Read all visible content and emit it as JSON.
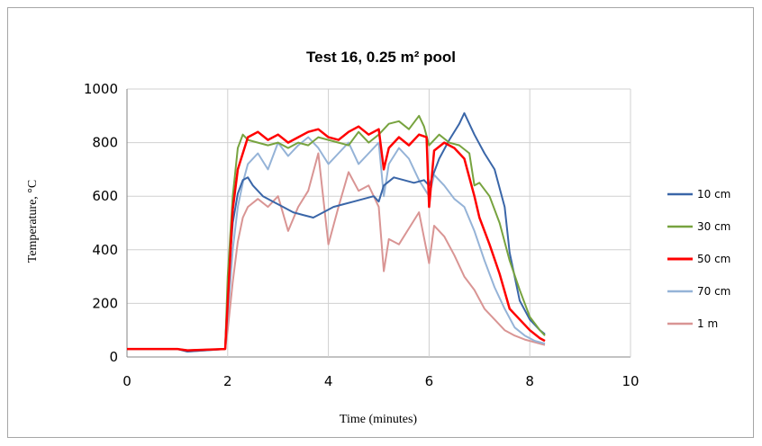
{
  "chart_data": {
    "type": "line",
    "title": "Test 16, 0.25 m² pool",
    "xlabel": "Time (minutes)",
    "ylabel": "Temperature, °C",
    "xlim": [
      0,
      10
    ],
    "ylim": [
      0,
      1000
    ],
    "xticks": [
      "0",
      "2",
      "4",
      "6",
      "8",
      "10"
    ],
    "yticks": [
      "0",
      "200",
      "400",
      "600",
      "800",
      "1000"
    ],
    "grid": true,
    "legend_position": "right",
    "series": [
      {
        "name": "10 cm",
        "color": "#3a66a8",
        "x": [
          0,
          1,
          1.2,
          1.95,
          2.0,
          2.1,
          2.2,
          2.3,
          2.4,
          2.5,
          2.7,
          2.9,
          3.1,
          3.3,
          3.5,
          3.7,
          3.9,
          4.1,
          4.3,
          4.5,
          4.7,
          4.9,
          5.0,
          5.1,
          5.3,
          5.5,
          5.7,
          5.9,
          6.0,
          6.2,
          6.4,
          6.6,
          6.7,
          6.9,
          7.1,
          7.3,
          7.5,
          7.6,
          7.8,
          8.0,
          8.2,
          8.3
        ],
        "y": [
          30,
          30,
          20,
          30,
          250,
          500,
          610,
          660,
          670,
          640,
          600,
          580,
          560,
          540,
          530,
          520,
          540,
          560,
          570,
          580,
          590,
          600,
          580,
          640,
          670,
          660,
          650,
          660,
          640,
          740,
          810,
          870,
          910,
          830,
          760,
          700,
          560,
          390,
          210,
          140,
          100,
          85
        ]
      },
      {
        "name": "30 cm",
        "color": "#77a33f",
        "x": [
          0,
          1,
          1.2,
          1.95,
          2.0,
          2.1,
          2.2,
          2.3,
          2.4,
          2.6,
          2.8,
          3.0,
          3.2,
          3.4,
          3.6,
          3.8,
          4.0,
          4.2,
          4.4,
          4.6,
          4.8,
          5.0,
          5.2,
          5.4,
          5.6,
          5.8,
          5.9,
          6.0,
          6.2,
          6.4,
          6.6,
          6.8,
          6.9,
          7.0,
          7.2,
          7.4,
          7.6,
          7.8,
          8.0,
          8.2,
          8.3
        ],
        "y": [
          30,
          30,
          25,
          30,
          300,
          600,
          780,
          830,
          810,
          800,
          790,
          800,
          780,
          800,
          790,
          820,
          810,
          800,
          790,
          840,
          800,
          830,
          870,
          880,
          850,
          900,
          860,
          790,
          830,
          800,
          790,
          760,
          640,
          650,
          600,
          500,
          360,
          250,
          150,
          100,
          80
        ]
      },
      {
        "name": "50 cm",
        "color": "#ff0000",
        "x": [
          0,
          1,
          1.2,
          1.95,
          2.0,
          2.1,
          2.2,
          2.3,
          2.4,
          2.6,
          2.8,
          3.0,
          3.2,
          3.4,
          3.6,
          3.8,
          4.0,
          4.2,
          4.4,
          4.6,
          4.8,
          5.0,
          5.1,
          5.2,
          5.4,
          5.6,
          5.8,
          5.95,
          6.0,
          6.1,
          6.3,
          6.5,
          6.7,
          6.9,
          7.0,
          7.2,
          7.4,
          7.6,
          7.8,
          8.0,
          8.2,
          8.3
        ],
        "y": [
          30,
          30,
          25,
          30,
          200,
          550,
          700,
          760,
          820,
          840,
          810,
          830,
          800,
          820,
          840,
          850,
          820,
          810,
          840,
          860,
          830,
          850,
          700,
          780,
          820,
          790,
          830,
          820,
          560,
          770,
          800,
          780,
          740,
          600,
          520,
          420,
          310,
          180,
          140,
          100,
          70,
          60
        ]
      },
      {
        "name": "70 cm",
        "color": "#95b3d7",
        "x": [
          0,
          1,
          1.2,
          1.95,
          2.0,
          2.1,
          2.2,
          2.3,
          2.4,
          2.6,
          2.8,
          3.0,
          3.2,
          3.4,
          3.6,
          3.8,
          4.0,
          4.2,
          4.4,
          4.6,
          4.8,
          5.0,
          5.1,
          5.2,
          5.4,
          5.6,
          5.8,
          6.0,
          6.1,
          6.3,
          6.5,
          6.7,
          6.9,
          7.1,
          7.3,
          7.5,
          7.7,
          7.9,
          8.1,
          8.3
        ],
        "y": [
          30,
          30,
          25,
          30,
          150,
          400,
          560,
          650,
          720,
          760,
          700,
          800,
          750,
          790,
          820,
          780,
          720,
          760,
          800,
          720,
          760,
          800,
          600,
          720,
          780,
          740,
          660,
          600,
          680,
          640,
          590,
          560,
          470,
          360,
          260,
          180,
          110,
          80,
          60,
          50
        ]
      },
      {
        "name": "1 m",
        "color": "#d99594",
        "x": [
          0,
          1,
          1.2,
          1.95,
          2.0,
          2.1,
          2.2,
          2.3,
          2.4,
          2.6,
          2.8,
          3.0,
          3.2,
          3.4,
          3.6,
          3.8,
          4.0,
          4.2,
          4.4,
          4.6,
          4.8,
          5.0,
          5.1,
          5.2,
          5.4,
          5.6,
          5.8,
          6.0,
          6.1,
          6.3,
          6.5,
          6.7,
          6.9,
          7.1,
          7.3,
          7.5,
          7.7,
          7.9,
          8.1,
          8.3
        ],
        "y": [
          30,
          30,
          20,
          30,
          100,
          280,
          430,
          520,
          560,
          590,
          560,
          600,
          470,
          560,
          620,
          760,
          420,
          560,
          690,
          620,
          640,
          560,
          320,
          440,
          420,
          480,
          540,
          350,
          490,
          450,
          380,
          300,
          250,
          180,
          140,
          100,
          80,
          65,
          55,
          45
        ]
      }
    ]
  }
}
